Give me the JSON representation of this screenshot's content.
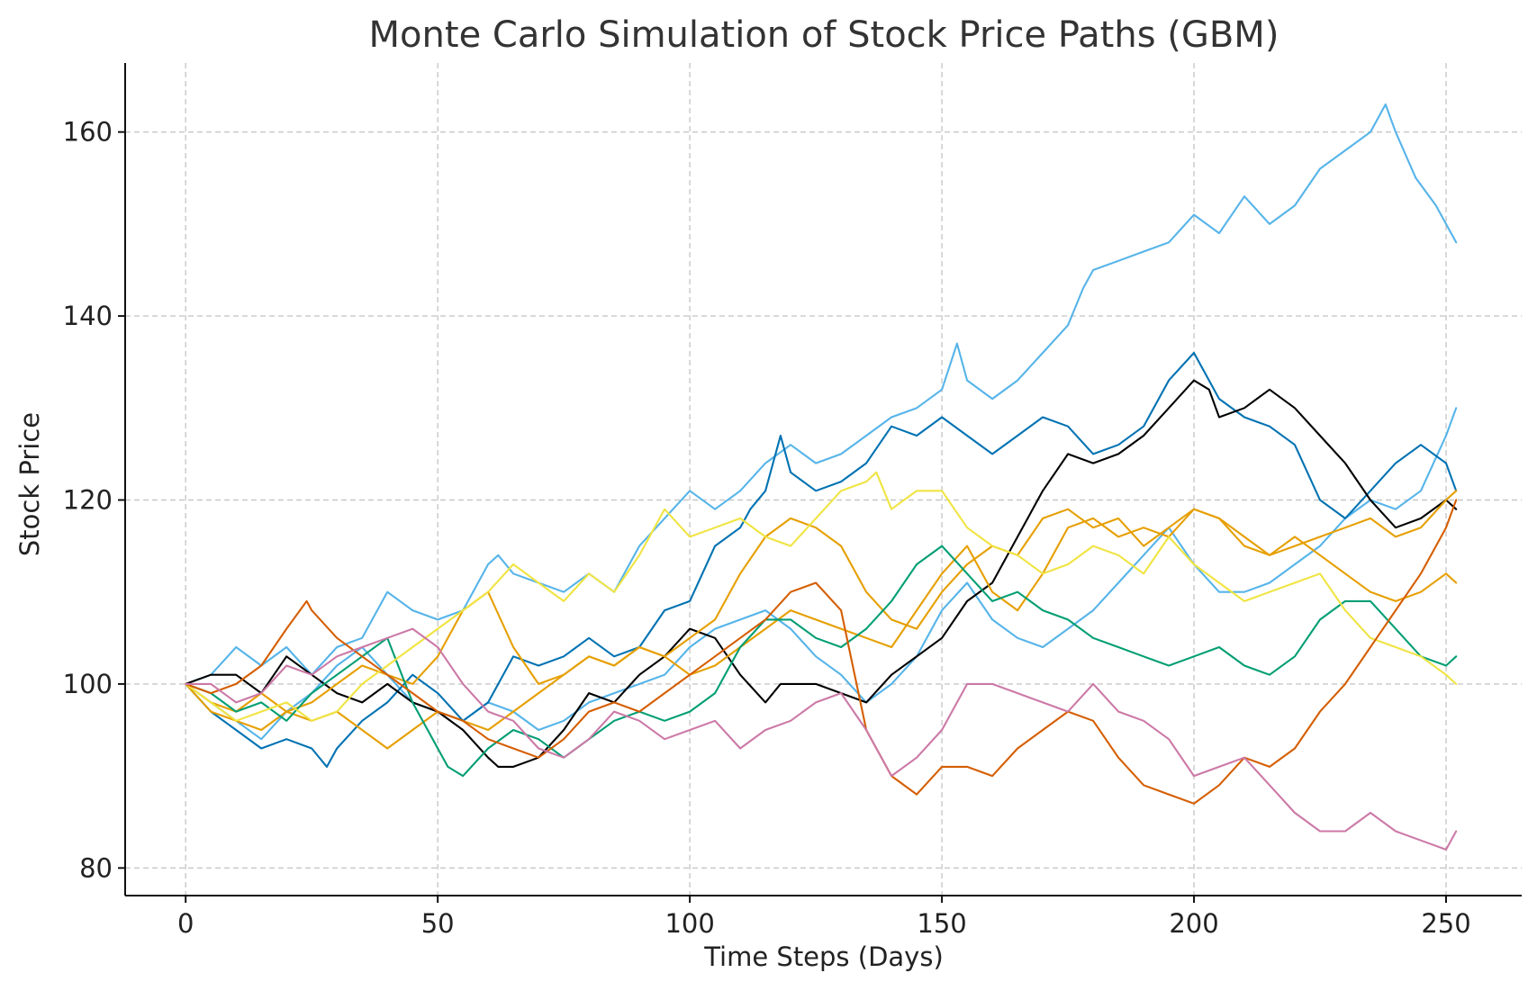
{
  "chart_data": {
    "type": "line",
    "title": "Monte Carlo Simulation of Stock Price Paths (GBM)",
    "xlabel": "Time Steps (Days)",
    "ylabel": "Stock Price",
    "xlim": [
      -12,
      265
    ],
    "ylim": [
      77,
      167.5
    ],
    "xticks": [
      0,
      50,
      100,
      150,
      200,
      250
    ],
    "yticks": [
      80,
      100,
      120,
      140,
      160
    ],
    "grid": true,
    "series": [
      {
        "color": "#56B4E9",
        "x": [
          0,
          5,
          10,
          15,
          20,
          25,
          30,
          35,
          40,
          45,
          50,
          55,
          60,
          62,
          65,
          70,
          75,
          80,
          85,
          90,
          95,
          100,
          105,
          110,
          115,
          120,
          125,
          130,
          135,
          140,
          145,
          150,
          153,
          155,
          160,
          165,
          170,
          175,
          178,
          180,
          185,
          190,
          195,
          200,
          205,
          210,
          215,
          220,
          225,
          230,
          235,
          238,
          240,
          244,
          248,
          252
        ],
        "values": [
          100,
          101,
          104,
          102,
          104,
          101,
          104,
          105,
          110,
          108,
          107,
          108,
          113,
          114,
          112,
          111,
          110,
          112,
          110,
          115,
          118,
          121,
          119,
          121,
          124,
          126,
          124,
          125,
          127,
          129,
          130,
          132,
          137,
          133,
          131,
          133,
          136,
          139,
          143,
          145,
          146,
          147,
          148,
          151,
          149,
          153,
          150,
          152,
          156,
          158,
          160,
          163,
          160,
          155,
          152,
          148
        ]
      },
      {
        "color": "#56B4E9",
        "x": [
          0,
          5,
          10,
          15,
          20,
          25,
          30,
          35,
          40,
          45,
          50,
          55,
          60,
          65,
          70,
          75,
          80,
          85,
          90,
          95,
          100,
          105,
          110,
          115,
          120,
          125,
          130,
          135,
          140,
          145,
          150,
          155,
          160,
          165,
          170,
          175,
          180,
          185,
          190,
          195,
          200,
          205,
          210,
          215,
          220,
          225,
          230,
          235,
          240,
          245,
          250,
          252
        ],
        "values": [
          100,
          98,
          96,
          94,
          97,
          99,
          102,
          104,
          101,
          98,
          97,
          96,
          98,
          97,
          95,
          96,
          98,
          99,
          100,
          101,
          104,
          106,
          107,
          108,
          106,
          103,
          101,
          98,
          100,
          103,
          108,
          111,
          107,
          105,
          104,
          106,
          108,
          111,
          114,
          117,
          113,
          110,
          110,
          111,
          113,
          115,
          118,
          120,
          119,
          121,
          127,
          130
        ]
      },
      {
        "color": "#0072B2",
        "x": [
          0,
          5,
          10,
          15,
          20,
          25,
          28,
          30,
          35,
          40,
          45,
          50,
          55,
          60,
          65,
          70,
          75,
          80,
          85,
          90,
          95,
          100,
          105,
          110,
          112,
          115,
          118,
          120,
          125,
          130,
          135,
          140,
          145,
          150,
          155,
          160,
          165,
          170,
          175,
          180,
          185,
          190,
          195,
          200,
          205,
          210,
          215,
          220,
          225,
          230,
          235,
          240,
          245,
          250,
          252
        ],
        "values": [
          100,
          97,
          95,
          93,
          94,
          93,
          91,
          93,
          96,
          98,
          101,
          99,
          96,
          98,
          103,
          102,
          103,
          105,
          103,
          104,
          108,
          109,
          115,
          117,
          119,
          121,
          127,
          123,
          121,
          122,
          124,
          128,
          127,
          129,
          127,
          125,
          127,
          129,
          128,
          125,
          126,
          128,
          133,
          136,
          131,
          129,
          128,
          126,
          120,
          118,
          121,
          124,
          126,
          124,
          121
        ]
      },
      {
        "color": "#000000",
        "x": [
          0,
          5,
          10,
          15,
          20,
          25,
          30,
          35,
          40,
          45,
          50,
          55,
          60,
          62,
          65,
          70,
          75,
          80,
          85,
          90,
          95,
          100,
          105,
          110,
          115,
          118,
          120,
          125,
          130,
          135,
          140,
          145,
          150,
          155,
          160,
          165,
          170,
          175,
          180,
          185,
          190,
          195,
          200,
          203,
          205,
          210,
          215,
          220,
          225,
          230,
          235,
          240,
          245,
          250,
          252
        ],
        "values": [
          100,
          101,
          101,
          99,
          103,
          101,
          99,
          98,
          100,
          98,
          97,
          95,
          92,
          91,
          91,
          92,
          95,
          99,
          98,
          101,
          103,
          106,
          105,
          101,
          98,
          100,
          100,
          100,
          99,
          98,
          101,
          103,
          105,
          109,
          111,
          116,
          121,
          125,
          124,
          125,
          127,
          130,
          133,
          132,
          129,
          130,
          132,
          130,
          127,
          124,
          120,
          117,
          118,
          120,
          119
        ]
      },
      {
        "color": "#E69F00",
        "x": [
          0,
          5,
          10,
          15,
          20,
          25,
          30,
          35,
          40,
          45,
          50,
          55,
          60,
          65,
          70,
          75,
          80,
          85,
          90,
          95,
          100,
          105,
          110,
          115,
          120,
          125,
          130,
          135,
          140,
          145,
          150,
          155,
          160,
          165,
          170,
          175,
          180,
          185,
          190,
          195,
          200,
          205,
          210,
          215,
          220,
          225,
          230,
          235,
          240,
          245,
          250,
          252
        ],
        "values": [
          100,
          98,
          97,
          99,
          97,
          96,
          97,
          95,
          93,
          95,
          97,
          96,
          95,
          97,
          99,
          101,
          103,
          102,
          104,
          103,
          101,
          102,
          104,
          106,
          108,
          107,
          106,
          105,
          104,
          108,
          112,
          115,
          110,
          108,
          112,
          117,
          118,
          116,
          117,
          116,
          119,
          118,
          116,
          114,
          115,
          116,
          117,
          118,
          116,
          117,
          120,
          121
        ]
      },
      {
        "color": "#E69F00",
        "x": [
          0,
          5,
          10,
          15,
          20,
          25,
          30,
          35,
          40,
          45,
          50,
          55,
          60,
          65,
          70,
          75,
          80,
          85,
          90,
          95,
          100,
          105,
          110,
          115,
          120,
          125,
          130,
          135,
          140,
          145,
          150,
          155,
          160,
          165,
          170,
          175,
          180,
          185,
          190,
          195,
          200,
          205,
          210,
          215,
          220,
          225,
          230,
          235,
          240,
          245,
          250,
          252
        ],
        "values": [
          100,
          97,
          96,
          95,
          97,
          98,
          100,
          102,
          101,
          100,
          103,
          108,
          110,
          104,
          100,
          101,
          103,
          102,
          104,
          103,
          105,
          107,
          112,
          116,
          118,
          117,
          115,
          110,
          107,
          106,
          110,
          113,
          115,
          114,
          118,
          119,
          117,
          118,
          115,
          117,
          119,
          118,
          115,
          114,
          116,
          114,
          112,
          110,
          109,
          110,
          112,
          111
        ]
      },
      {
        "color": "#009E73",
        "x": [
          0,
          5,
          10,
          15,
          20,
          25,
          30,
          35,
          40,
          45,
          50,
          52,
          55,
          60,
          65,
          70,
          75,
          80,
          85,
          90,
          95,
          100,
          105,
          110,
          115,
          120,
          125,
          130,
          135,
          140,
          145,
          150,
          155,
          160,
          165,
          170,
          175,
          180,
          185,
          190,
          195,
          200,
          205,
          210,
          215,
          220,
          225,
          230,
          235,
          240,
          245,
          250,
          252
        ],
        "values": [
          100,
          99,
          97,
          98,
          96,
          99,
          101,
          103,
          105,
          98,
          93,
          91,
          90,
          93,
          95,
          94,
          92,
          94,
          96,
          97,
          96,
          97,
          99,
          104,
          107,
          107,
          105,
          104,
          106,
          109,
          113,
          115,
          112,
          109,
          110,
          108,
          107,
          105,
          104,
          103,
          102,
          103,
          104,
          102,
          101,
          103,
          107,
          109,
          109,
          106,
          103,
          102,
          103
        ]
      },
      {
        "color": "#F0E442",
        "x": [
          0,
          5,
          10,
          15,
          20,
          25,
          30,
          35,
          40,
          45,
          50,
          55,
          60,
          65,
          70,
          75,
          80,
          85,
          90,
          95,
          100,
          105,
          110,
          115,
          120,
          125,
          130,
          135,
          137,
          140,
          145,
          150,
          155,
          160,
          165,
          170,
          175,
          180,
          185,
          190,
          195,
          200,
          205,
          210,
          215,
          220,
          225,
          230,
          235,
          240,
          245,
          250,
          252
        ],
        "values": [
          100,
          98,
          96,
          97,
          98,
          96,
          97,
          100,
          102,
          104,
          106,
          108,
          110,
          113,
          111,
          109,
          112,
          110,
          114,
          119,
          116,
          117,
          118,
          116,
          115,
          118,
          121,
          122,
          123,
          119,
          121,
          121,
          117,
          115,
          114,
          112,
          113,
          115,
          114,
          112,
          116,
          113,
          111,
          109,
          110,
          111,
          112,
          108,
          105,
          104,
          103,
          101,
          100
        ]
      },
      {
        "color": "#D55E00",
        "x": [
          0,
          5,
          10,
          15,
          20,
          24,
          25,
          30,
          35,
          40,
          45,
          50,
          55,
          60,
          65,
          70,
          75,
          80,
          85,
          90,
          95,
          100,
          105,
          110,
          115,
          120,
          125,
          130,
          135,
          140,
          145,
          150,
          155,
          160,
          165,
          170,
          175,
          180,
          185,
          190,
          195,
          200,
          205,
          210,
          215,
          220,
          225,
          230,
          235,
          240,
          245,
          250,
          252
        ],
        "values": [
          100,
          99,
          100,
          102,
          106,
          109,
          108,
          105,
          103,
          101,
          99,
          97,
          96,
          94,
          93,
          92,
          94,
          97,
          98,
          97,
          99,
          101,
          103,
          105,
          107,
          110,
          111,
          108,
          95,
          90,
          88,
          91,
          91,
          90,
          93,
          95,
          97,
          96,
          92,
          89,
          88,
          87,
          89,
          92,
          91,
          93,
          97,
          100,
          104,
          108,
          112,
          117,
          120
        ]
      },
      {
        "color": "#CC79A7",
        "x": [
          0,
          5,
          10,
          15,
          20,
          25,
          30,
          35,
          40,
          45,
          50,
          55,
          60,
          65,
          70,
          75,
          80,
          85,
          90,
          95,
          100,
          105,
          110,
          115,
          120,
          125,
          130,
          135,
          140,
          145,
          150,
          155,
          160,
          165,
          170,
          175,
          180,
          185,
          190,
          195,
          200,
          205,
          210,
          215,
          220,
          225,
          230,
          235,
          240,
          245,
          250,
          252
        ],
        "values": [
          100,
          100,
          98,
          99,
          102,
          101,
          103,
          104,
          105,
          106,
          104,
          100,
          97,
          96,
          93,
          92,
          94,
          97,
          96,
          94,
          95,
          96,
          93,
          95,
          96,
          98,
          99,
          95,
          90,
          92,
          95,
          100,
          100,
          99,
          98,
          97,
          100,
          97,
          96,
          94,
          90,
          91,
          92,
          89,
          86,
          84,
          84,
          86,
          84,
          83,
          82,
          84
        ]
      }
    ]
  }
}
